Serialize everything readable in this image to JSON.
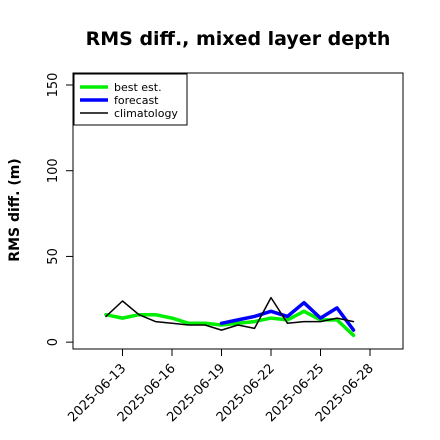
{
  "chart_data": {
    "type": "line",
    "title": "RMS diff., mixed layer depth",
    "xlabel": "",
    "ylabel": "RMS diff. (m)",
    "xlim": [
      "2025-06-10",
      "2025-06-30"
    ],
    "ylim": [
      -4,
      157
    ],
    "yticks": [
      0,
      50,
      100,
      150
    ],
    "xticks": [
      {
        "label": "2025-06-13",
        "color": "#000000"
      },
      {
        "label": "2025-06-16",
        "color": "#000000"
      },
      {
        "label": "2025-06-19",
        "color": "#228b22"
      },
      {
        "label": "2025-06-22",
        "color": "#000000"
      },
      {
        "label": "2025-06-25",
        "color": "#000000"
      },
      {
        "label": "2025-06-28",
        "color": "#000000"
      }
    ],
    "grid": false,
    "legend_position": "top-left",
    "series": [
      {
        "name": "best est.",
        "color": "#00ee00",
        "line_width": "thick",
        "x": [
          "2025-06-12",
          "2025-06-13",
          "2025-06-14",
          "2025-06-15",
          "2025-06-16",
          "2025-06-17",
          "2025-06-18",
          "2025-06-19",
          "2025-06-20",
          "2025-06-21",
          "2025-06-22",
          "2025-06-23",
          "2025-06-24",
          "2025-06-25",
          "2025-06-26",
          "2025-06-27"
        ],
        "values": [
          16,
          14,
          16,
          16,
          14,
          11,
          11,
          10,
          11,
          12,
          14,
          13,
          18,
          13,
          13,
          4
        ]
      },
      {
        "name": "forecast",
        "color": "#0000ff",
        "line_width": "thick",
        "x": [
          "2025-06-19",
          "2025-06-20",
          "2025-06-21",
          "2025-06-22",
          "2025-06-23",
          "2025-06-24",
          "2025-06-25",
          "2025-06-26",
          "2025-06-27"
        ],
        "values": [
          11,
          13,
          15,
          18,
          15,
          23,
          14,
          20,
          7
        ]
      },
      {
        "name": "climatology",
        "color": "#000000",
        "line_width": "thin",
        "x": [
          "2025-06-12",
          "2025-06-13",
          "2025-06-14",
          "2025-06-15",
          "2025-06-16",
          "2025-06-17",
          "2025-06-18",
          "2025-06-19",
          "2025-06-20",
          "2025-06-21",
          "2025-06-22",
          "2025-06-23",
          "2025-06-24",
          "2025-06-25",
          "2025-06-26",
          "2025-06-27"
        ],
        "values": [
          15,
          24,
          16,
          12,
          11,
          10,
          10,
          7,
          10,
          8,
          26,
          11,
          12,
          12,
          14,
          12
        ]
      }
    ]
  }
}
